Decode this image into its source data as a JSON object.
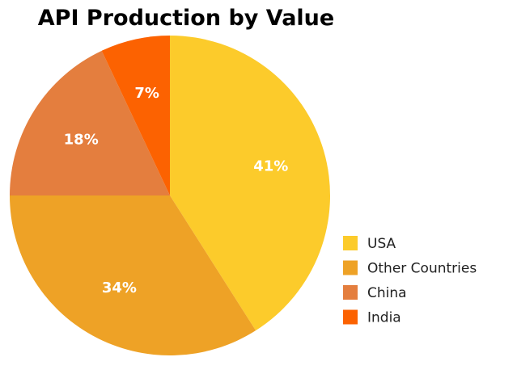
{
  "chart_data": {
    "type": "pie",
    "title": "API Production by Value",
    "categories": [
      "USA",
      "Other Countries",
      "China",
      "India"
    ],
    "values": [
      41,
      34,
      18,
      7
    ],
    "data_labels": [
      "41%",
      "34%",
      "18%",
      "7%"
    ],
    "colors": [
      "#FCCB2B",
      "#EEA226",
      "#E47E3E",
      "#FC6201"
    ],
    "start_angle": "12 o'clock",
    "direction": "clockwise",
    "legend_position": "bottom-right"
  }
}
